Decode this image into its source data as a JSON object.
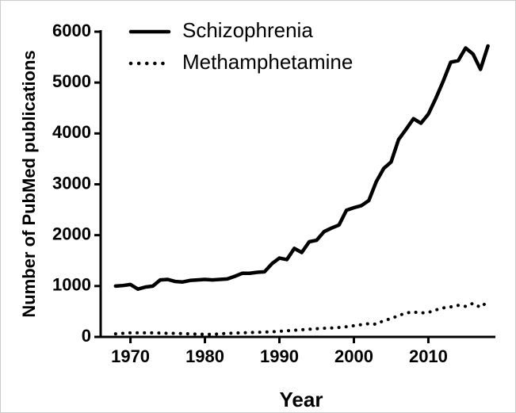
{
  "chart_data": {
    "type": "line",
    "xlabel": "Year",
    "ylabel": "Number of PubMed publications",
    "x": [
      1968,
      1969,
      1970,
      1971,
      1972,
      1973,
      1974,
      1975,
      1976,
      1977,
      1978,
      1979,
      1980,
      1981,
      1982,
      1983,
      1984,
      1985,
      1986,
      1987,
      1988,
      1989,
      1990,
      1991,
      1992,
      1993,
      1994,
      1995,
      1996,
      1997,
      1998,
      1999,
      2000,
      2001,
      2002,
      2003,
      2004,
      2005,
      2006,
      2007,
      2008,
      2009,
      2010,
      2011,
      2012,
      2013,
      2014,
      2015,
      2016,
      2017,
      2018
    ],
    "series": [
      {
        "name": "Schizophrenia",
        "color": "#000000",
        "style": "solid",
        "values": [
          1000,
          1010,
          1030,
          940,
          980,
          1000,
          1120,
          1130,
          1090,
          1080,
          1110,
          1120,
          1130,
          1120,
          1130,
          1140,
          1190,
          1250,
          1250,
          1270,
          1280,
          1440,
          1550,
          1520,
          1740,
          1660,
          1870,
          1900,
          2070,
          2140,
          2200,
          2490,
          2540,
          2580,
          2680,
          3050,
          3310,
          3440,
          3880,
          4080,
          4290,
          4200,
          4380,
          4690,
          5030,
          5400,
          5430,
          5680,
          5560,
          5260,
          5720
        ]
      },
      {
        "name": "Methamphetamine",
        "color": "#000000",
        "style": "dotted",
        "values": [
          60,
          70,
          80,
          80,
          80,
          80,
          75,
          70,
          70,
          65,
          60,
          55,
          50,
          50,
          60,
          70,
          75,
          80,
          85,
          90,
          95,
          100,
          110,
          120,
          130,
          140,
          150,
          160,
          170,
          175,
          185,
          200,
          220,
          240,
          260,
          250,
          320,
          360,
          420,
          470,
          490,
          470,
          480,
          530,
          570,
          590,
          620,
          600,
          660,
          580,
          700
        ]
      }
    ],
    "xlim": [
      1966,
      2019
    ],
    "xticks": [
      1970,
      1980,
      1990,
      2000,
      2010
    ],
    "ylim": [
      0,
      6000
    ],
    "yticks": [
      0,
      1000,
      2000,
      3000,
      4000,
      5000,
      6000
    ],
    "legend": "upper left"
  }
}
